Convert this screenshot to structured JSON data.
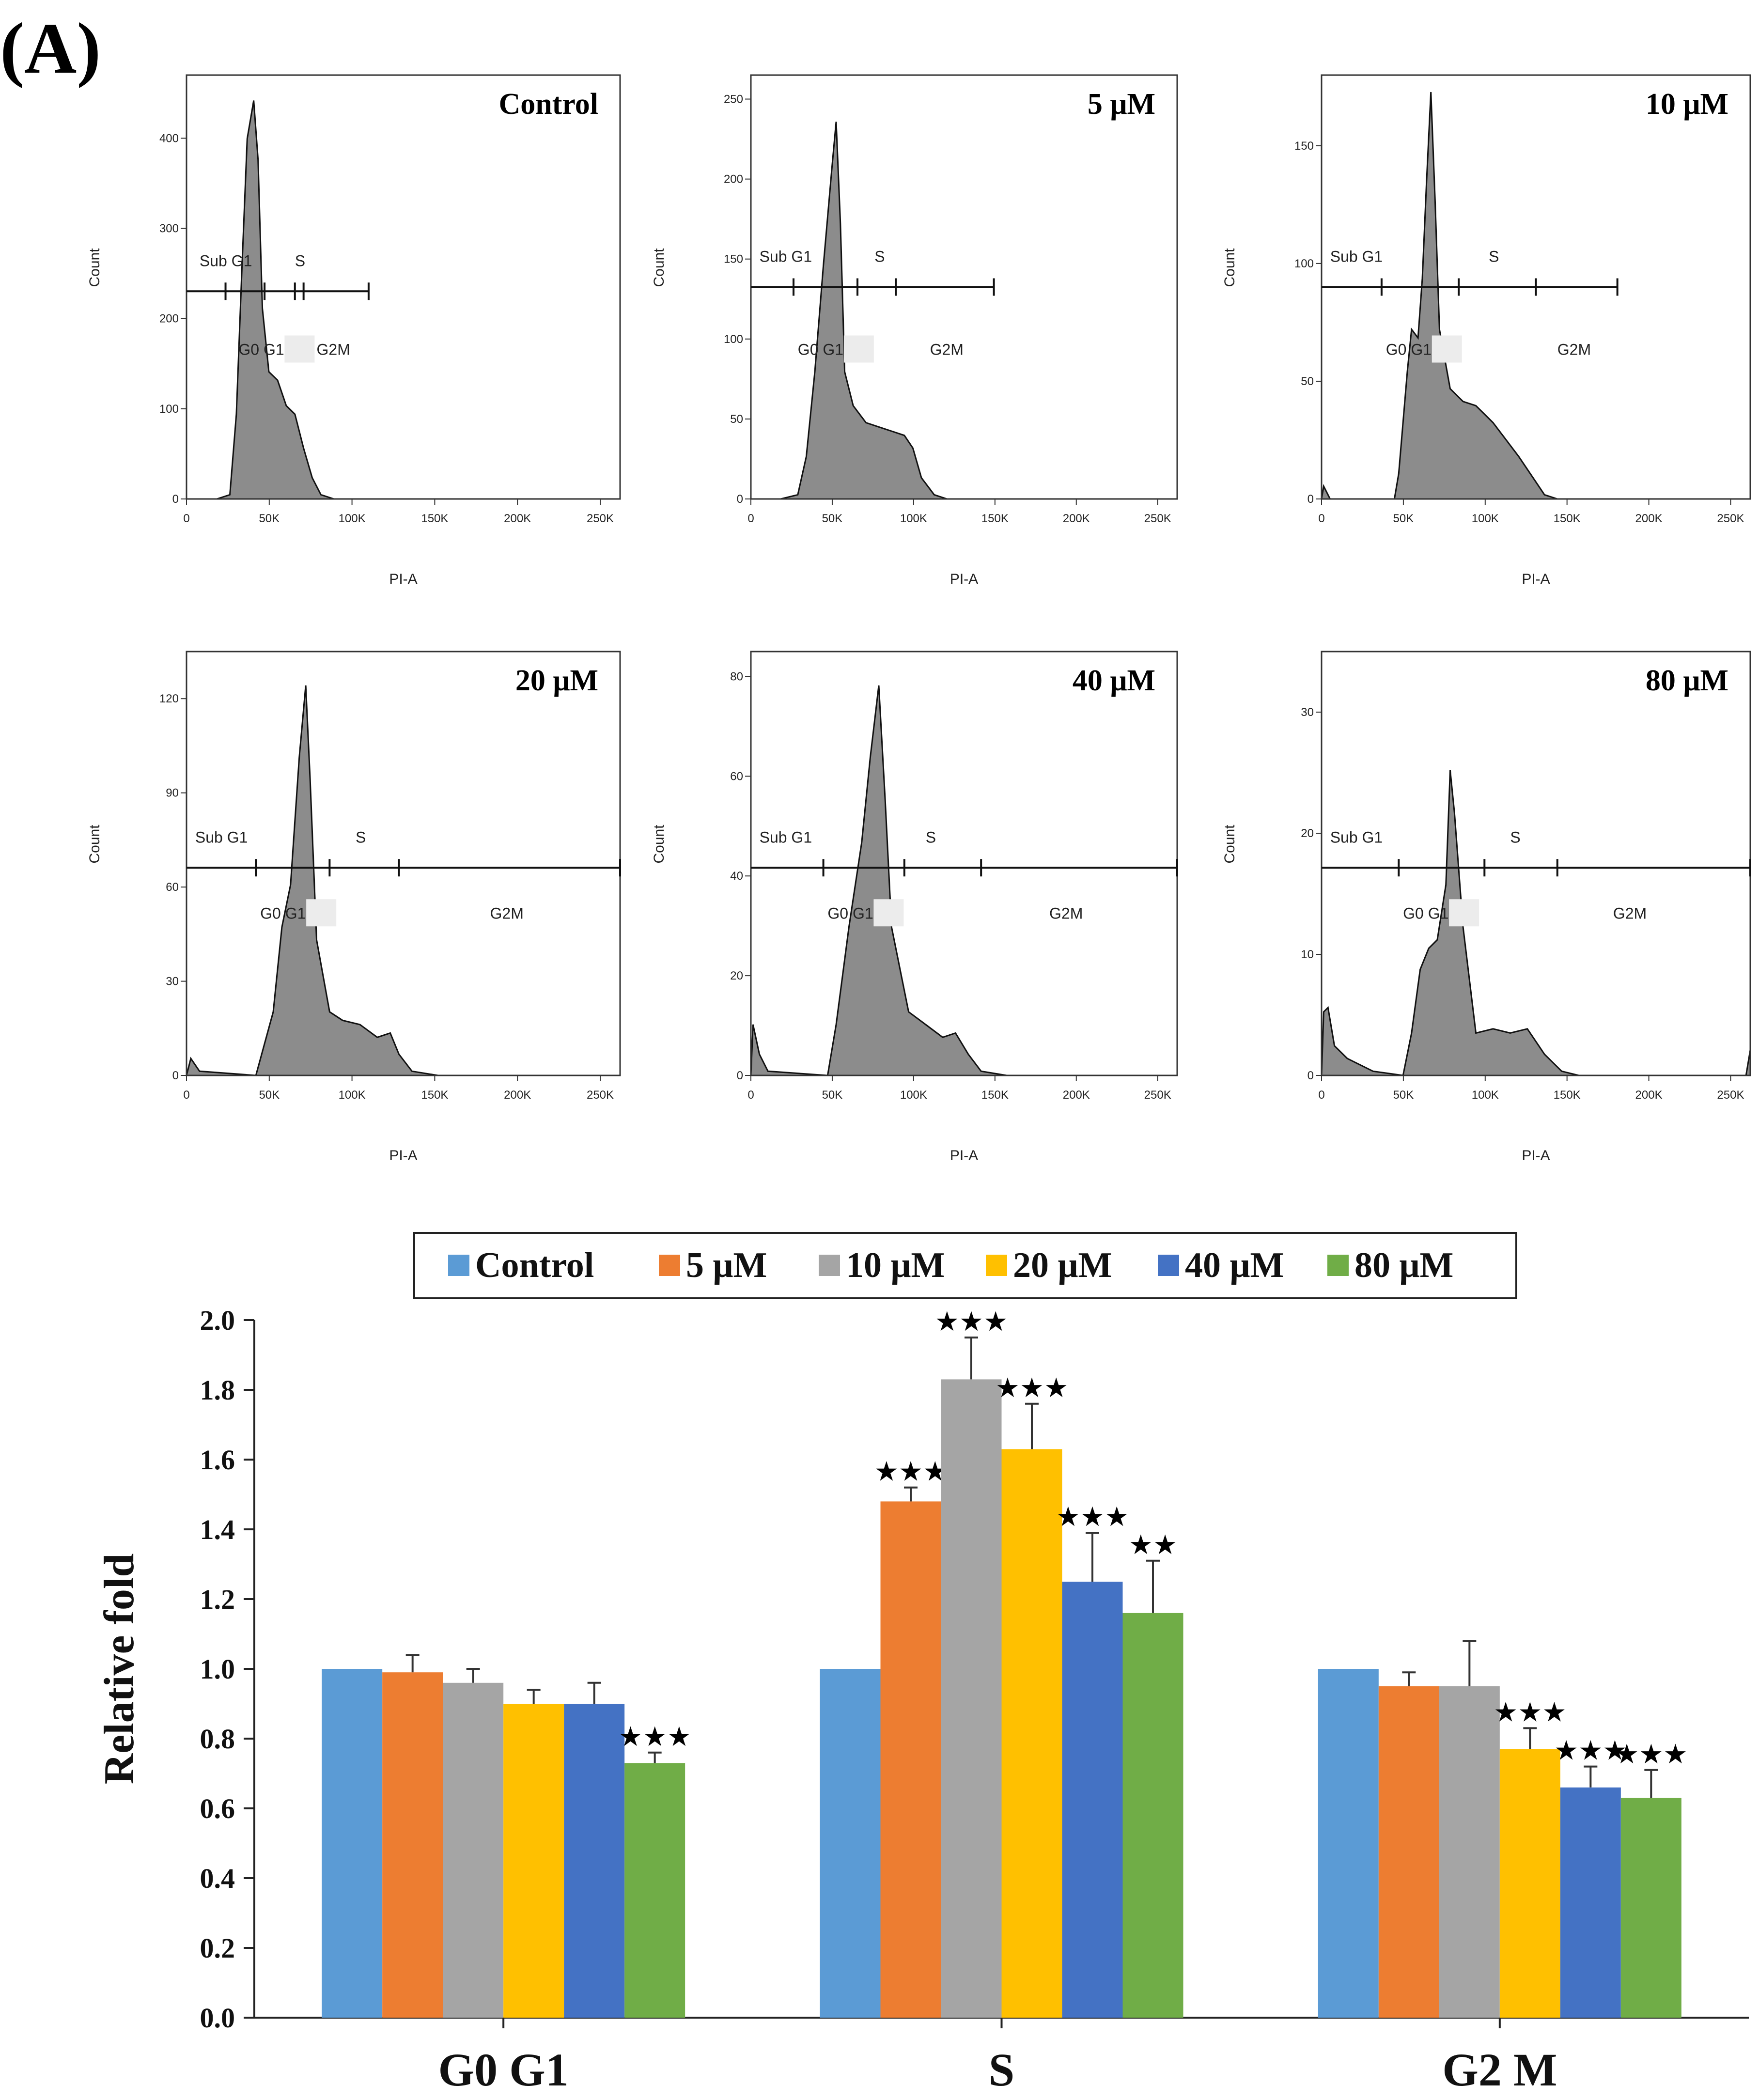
{
  "panel_label": "(A)",
  "histograms": {
    "x_label": "PI-A",
    "y_label": "Count",
    "x_ticks": [
      "0",
      "50K",
      "100K",
      "150K",
      "200K",
      "250K"
    ],
    "gates": {
      "sub_g1": "Sub G1",
      "s": "S",
      "g0g1": "G0 G1",
      "g2m": "G2M"
    },
    "panels": [
      {
        "title": "Control",
        "y_ticks": [
          "0",
          "100",
          "200",
          "300",
          "400"
        ],
        "ymax": 470
      },
      {
        "title": "5 μM",
        "y_ticks": [
          "0",
          "50",
          "100",
          "150",
          "200",
          "250"
        ],
        "ymax": 265
      },
      {
        "title": "10 μM",
        "y_ticks": [
          "0",
          "50",
          "100",
          "150"
        ],
        "ymax": 180
      },
      {
        "title": "20 μM",
        "y_ticks": [
          "0",
          "30",
          "60",
          "90",
          "120"
        ],
        "ymax": 135
      },
      {
        "title": "40 μM",
        "y_ticks": [
          "0",
          "20",
          "40",
          "60",
          "80"
        ],
        "ymax": 85
      },
      {
        "title": "80 μM",
        "y_ticks": [
          "0",
          "10",
          "20",
          "30"
        ],
        "ymax": 35
      }
    ]
  },
  "colors": {
    "control": "#5B9BD5",
    "5": "#ED7D31",
    "10": "#A5A5A5",
    "20": "#FFC000",
    "40": "#4472C4",
    "80": "#70AD47"
  },
  "chart_data": {
    "type": "bar",
    "title": "",
    "xlabel": "",
    "ylabel": "Relative fold",
    "ylim": [
      0,
      2.0
    ],
    "y_ticks": [
      "0.0",
      "0.2",
      "0.4",
      "0.6",
      "0.8",
      "1.0",
      "1.2",
      "1.4",
      "1.6",
      "1.8",
      "2.0"
    ],
    "categories": [
      "G0 G1",
      "S",
      "G2 M"
    ],
    "legend_position": "top-center",
    "series": [
      {
        "name": "Control",
        "values": [
          1.0,
          1.0,
          1.0
        ],
        "errors": [
          0,
          0,
          0
        ],
        "sig": [
          "",
          "",
          ""
        ]
      },
      {
        "name": "5 μM",
        "values": [
          0.99,
          1.48,
          0.95
        ],
        "errors": [
          0.05,
          0.04,
          0.04
        ],
        "sig": [
          "",
          "★★★",
          ""
        ]
      },
      {
        "name": "10 μM",
        "values": [
          0.96,
          1.83,
          0.95
        ],
        "errors": [
          0.04,
          0.12,
          0.13
        ],
        "sig": [
          "",
          "★★★",
          ""
        ]
      },
      {
        "name": "20 μM",
        "values": [
          0.9,
          1.63,
          0.77
        ],
        "errors": [
          0.04,
          0.13,
          0.06
        ],
        "sig": [
          "",
          "★★★",
          "★★★"
        ]
      },
      {
        "name": "40 μM",
        "values": [
          0.9,
          1.25,
          0.66
        ],
        "errors": [
          0.06,
          0.14,
          0.06
        ],
        "sig": [
          "",
          "★★★",
          "★★★"
        ]
      },
      {
        "name": "80 μM",
        "values": [
          0.73,
          1.16,
          0.63
        ],
        "errors": [
          0.03,
          0.15,
          0.08
        ],
        "sig": [
          "★★★",
          "★★",
          "★★★"
        ]
      }
    ]
  }
}
